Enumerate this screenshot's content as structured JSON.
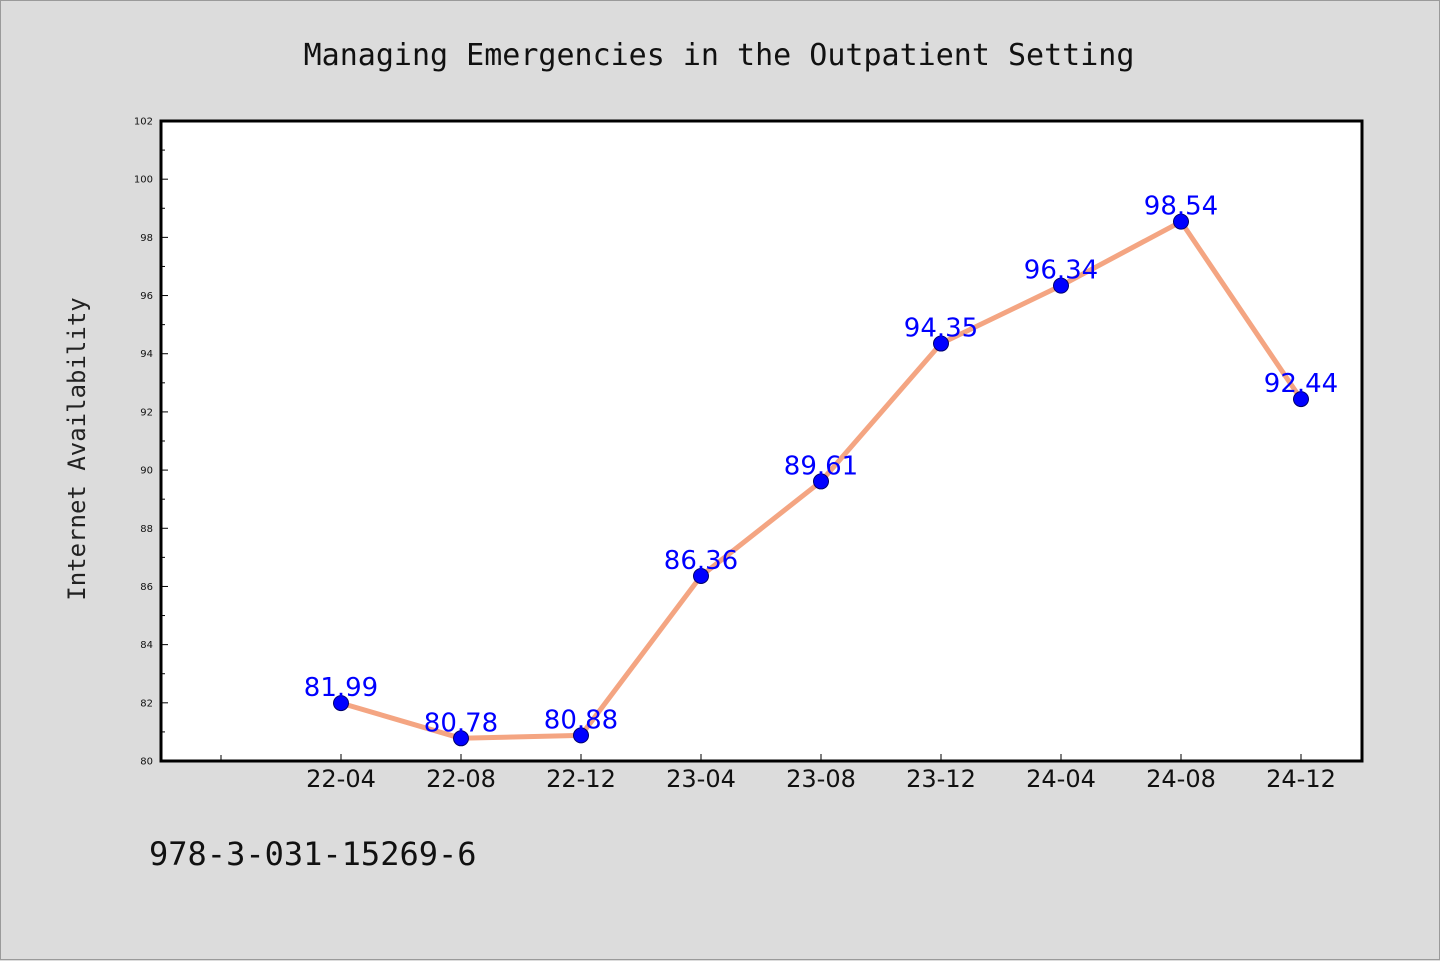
{
  "chart_data": {
    "type": "line",
    "title": "Managing Emergencies in the Outpatient Setting",
    "ylabel": "Internet Availability",
    "xlabel": "",
    "categories": [
      "22-04",
      "22-08",
      "22-12",
      "23-04",
      "23-08",
      "23-12",
      "24-04",
      "24-08",
      "24-12"
    ],
    "values": [
      81.99,
      80.78,
      80.88,
      86.36,
      89.61,
      94.35,
      96.34,
      98.54,
      92.44
    ],
    "value_labels": [
      "81.99",
      "80.78",
      "80.88",
      "86.36",
      "89.61",
      "94.35",
      "96.34",
      "98.54",
      "92.44"
    ],
    "ylim": [
      80,
      102
    ],
    "yticks": [
      "80",
      "82",
      "84",
      "86",
      "88",
      "90",
      "92",
      "94",
      "96",
      "98",
      "100",
      "102"
    ],
    "grid": false,
    "line_color": "#f4a582",
    "marker_color": "#0000ff",
    "label_color": "#0000ff"
  },
  "footer": {
    "isbn": "978-3-031-15269-6"
  }
}
